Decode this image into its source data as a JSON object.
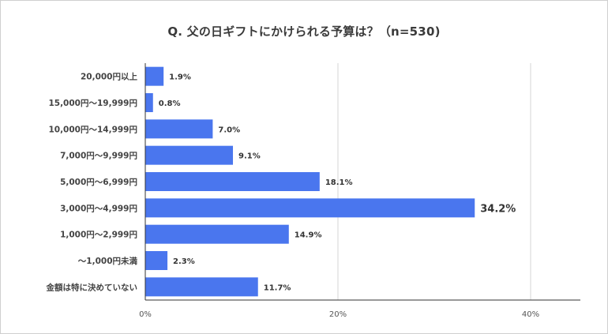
{
  "chart_data": {
    "type": "bar",
    "orientation": "horizontal",
    "title": "Q. 父の日ギフトにかけられる予算は？（n=530)",
    "categories": [
      "20,000円以上",
      "15,000円～19,999円",
      "10,000円～14,999円",
      "7,000円～9,999円",
      "5,000円～6,999円",
      "3,000円～4,999円",
      "1,000円～2,999円",
      "～1,000円未満",
      "金額は特に決めていない"
    ],
    "values": [
      1.9,
      0.8,
      7.0,
      9.1,
      18.1,
      34.2,
      14.9,
      2.3,
      11.7
    ],
    "value_labels": [
      "1.9%",
      "0.8%",
      "7.0%",
      "9.1%",
      "18.1%",
      "34.2%",
      "14.9%",
      "2.3%",
      "11.7%"
    ],
    "xlim": [
      0,
      45
    ],
    "xticks": [
      0,
      20,
      40
    ],
    "xtick_labels": [
      "0%",
      "20%",
      "40%"
    ],
    "highlight_index": 5,
    "xlabel": "",
    "ylabel": "",
    "grid": true,
    "colors": {
      "bar": "#4a76ee",
      "grid": "#d6d6d6",
      "axis": "#333333"
    }
  }
}
